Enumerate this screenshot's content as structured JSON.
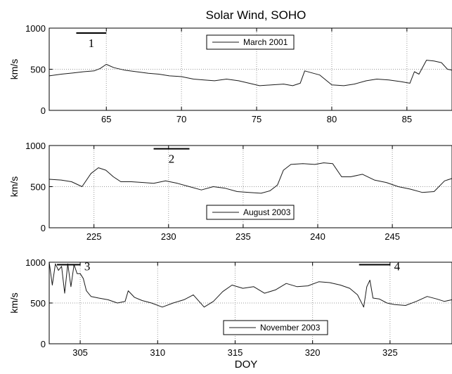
{
  "figure_title": "Solar Wind, SOHO",
  "x_axis_label": "DOY",
  "colors": {
    "line": "#1a1a1a",
    "grid": "#9a9a9a",
    "axes": "#000000",
    "background": "#ffffff"
  },
  "chart_data": [
    {
      "type": "line",
      "ylabel": "km/s",
      "xlim": [
        61.2,
        88
      ],
      "ylim": [
        0,
        1000
      ],
      "xticks": [
        65,
        70,
        75,
        80,
        85
      ],
      "yticks": [
        0,
        500,
        1000
      ],
      "grid": true,
      "legend": {
        "label": "March 2001",
        "placement": "top-center"
      },
      "series": [
        {
          "name": "March 2001",
          "x": [
            61.2,
            62.0,
            62.8,
            63.5,
            64.2,
            64.6,
            65.0,
            65.5,
            66.2,
            67.0,
            67.8,
            68.5,
            69.2,
            70.0,
            70.8,
            71.5,
            72.2,
            73.0,
            73.8,
            74.5,
            75.2,
            76.0,
            76.8,
            77.4,
            77.9,
            78.2,
            78.6,
            79.2,
            80.0,
            80.8,
            81.5,
            82.3,
            83.0,
            83.8,
            84.6,
            85.2,
            85.5,
            85.8,
            86.3,
            86.8,
            87.3,
            87.7,
            88.0
          ],
          "y": [
            420,
            440,
            455,
            470,
            480,
            510,
            560,
            520,
            490,
            470,
            450,
            440,
            420,
            410,
            380,
            370,
            360,
            380,
            360,
            330,
            300,
            310,
            320,
            300,
            330,
            480,
            460,
            430,
            310,
            300,
            320,
            360,
            380,
            370,
            350,
            330,
            470,
            440,
            610,
            600,
            580,
            500,
            490
          ]
        }
      ],
      "annotations": [
        {
          "label": "1",
          "x_start": 63.0,
          "x_end": 65.0,
          "y": 940
        }
      ]
    },
    {
      "type": "line",
      "ylabel": "km/s",
      "xlim": [
        222,
        249
      ],
      "ylim": [
        0,
        1000
      ],
      "xticks": [
        225,
        230,
        235,
        240,
        245
      ],
      "yticks": [
        0,
        500,
        1000
      ],
      "grid": true,
      "legend": {
        "label": "August 2003",
        "placement": "bottom-center"
      },
      "series": [
        {
          "name": "August 2003",
          "x": [
            222.0,
            222.8,
            223.5,
            224.2,
            224.8,
            225.3,
            225.8,
            226.3,
            226.8,
            227.5,
            228.3,
            229.0,
            229.8,
            230.6,
            231.4,
            232.2,
            233.0,
            233.8,
            234.6,
            235.4,
            236.2,
            236.8,
            237.3,
            237.7,
            238.2,
            239.0,
            239.8,
            240.4,
            241.0,
            241.6,
            242.2,
            243.0,
            243.8,
            244.6,
            245.4,
            246.2,
            247.0,
            247.8,
            248.5,
            249.0
          ],
          "y": [
            590,
            580,
            560,
            500,
            660,
            730,
            700,
            620,
            560,
            560,
            550,
            540,
            570,
            540,
            500,
            460,
            500,
            480,
            440,
            430,
            420,
            450,
            520,
            700,
            770,
            780,
            770,
            790,
            780,
            620,
            620,
            650,
            580,
            550,
            500,
            470,
            430,
            440,
            570,
            600
          ]
        }
      ],
      "annotations": [
        {
          "label": "2",
          "x_start": 229.0,
          "x_end": 231.4,
          "y": 960
        }
      ]
    },
    {
      "type": "line",
      "ylabel": "km/s",
      "xlim": [
        303,
        329
      ],
      "ylim": [
        0,
        1000
      ],
      "xticks": [
        305,
        310,
        315,
        320,
        325
      ],
      "yticks": [
        0,
        500,
        1000
      ],
      "grid": true,
      "legend": {
        "label": "November 2003",
        "placement": "bottom-center"
      },
      "series": [
        {
          "name": "November 2003",
          "x": [
            303.0,
            303.2,
            303.4,
            303.6,
            303.8,
            304.0,
            304.2,
            304.4,
            304.6,
            304.8,
            305.0,
            305.2,
            305.4,
            305.7,
            306.2,
            306.8,
            307.4,
            307.9,
            308.1,
            308.5,
            309.0,
            309.6,
            310.3,
            311.0,
            311.7,
            312.3,
            313.0,
            313.6,
            314.2,
            314.8,
            315.5,
            316.2,
            316.9,
            317.6,
            318.3,
            319.0,
            319.7,
            320.4,
            321.1,
            321.8,
            322.4,
            322.9,
            323.3,
            323.5,
            323.7,
            323.9,
            324.3,
            324.8,
            325.3,
            326.0,
            326.7,
            327.4,
            328.0,
            328.5,
            329.0
          ],
          "y": [
            1000,
            720,
            980,
            900,
            950,
            620,
            980,
            700,
            970,
            860,
            860,
            800,
            650,
            580,
            560,
            540,
            500,
            520,
            650,
            570,
            530,
            500,
            450,
            500,
            540,
            600,
            450,
            520,
            640,
            720,
            680,
            700,
            620,
            660,
            740,
            700,
            710,
            760,
            750,
            720,
            680,
            600,
            450,
            700,
            780,
            560,
            550,
            500,
            480,
            470,
            520,
            580,
            550,
            520,
            540
          ]
        }
      ],
      "annotations": [
        {
          "label": "3",
          "x_start": 303.5,
          "x_end": 305.0,
          "y": 970
        },
        {
          "label": "4",
          "x_start": 323.0,
          "x_end": 325.0,
          "y": 970
        }
      ]
    }
  ]
}
